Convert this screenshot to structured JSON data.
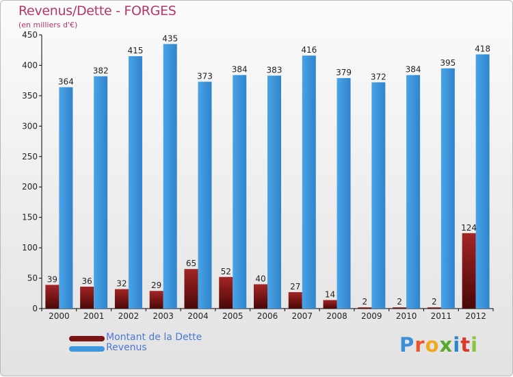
{
  "title": "Revenus/Dette - FORGES",
  "subtitle": "(en milliers d'€)",
  "logo": "Proxiti",
  "colors": {
    "dette": "#7b1414",
    "revenus": "#3f98dc",
    "title": "#b5366a",
    "axis": "#000000"
  },
  "chart_data": {
    "type": "bar",
    "categories": [
      "2000",
      "2001",
      "2002",
      "2003",
      "2004",
      "2005",
      "2006",
      "2007",
      "2008",
      "2009",
      "2010",
      "2011",
      "2012"
    ],
    "series": [
      {
        "name": "Montant de la Dette",
        "values": [
          39,
          36,
          32,
          29,
          65,
          52,
          40,
          27,
          14,
          2,
          2,
          2,
          124
        ]
      },
      {
        "name": "Revenus",
        "values": [
          364,
          382,
          415,
          435,
          373,
          384,
          383,
          416,
          379,
          372,
          384,
          395,
          418
        ]
      }
    ],
    "ylim": [
      0,
      450
    ],
    "yticks": [
      0,
      50,
      100,
      150,
      200,
      250,
      300,
      350,
      400,
      450
    ],
    "grid": false,
    "legend": "bottom-left"
  }
}
